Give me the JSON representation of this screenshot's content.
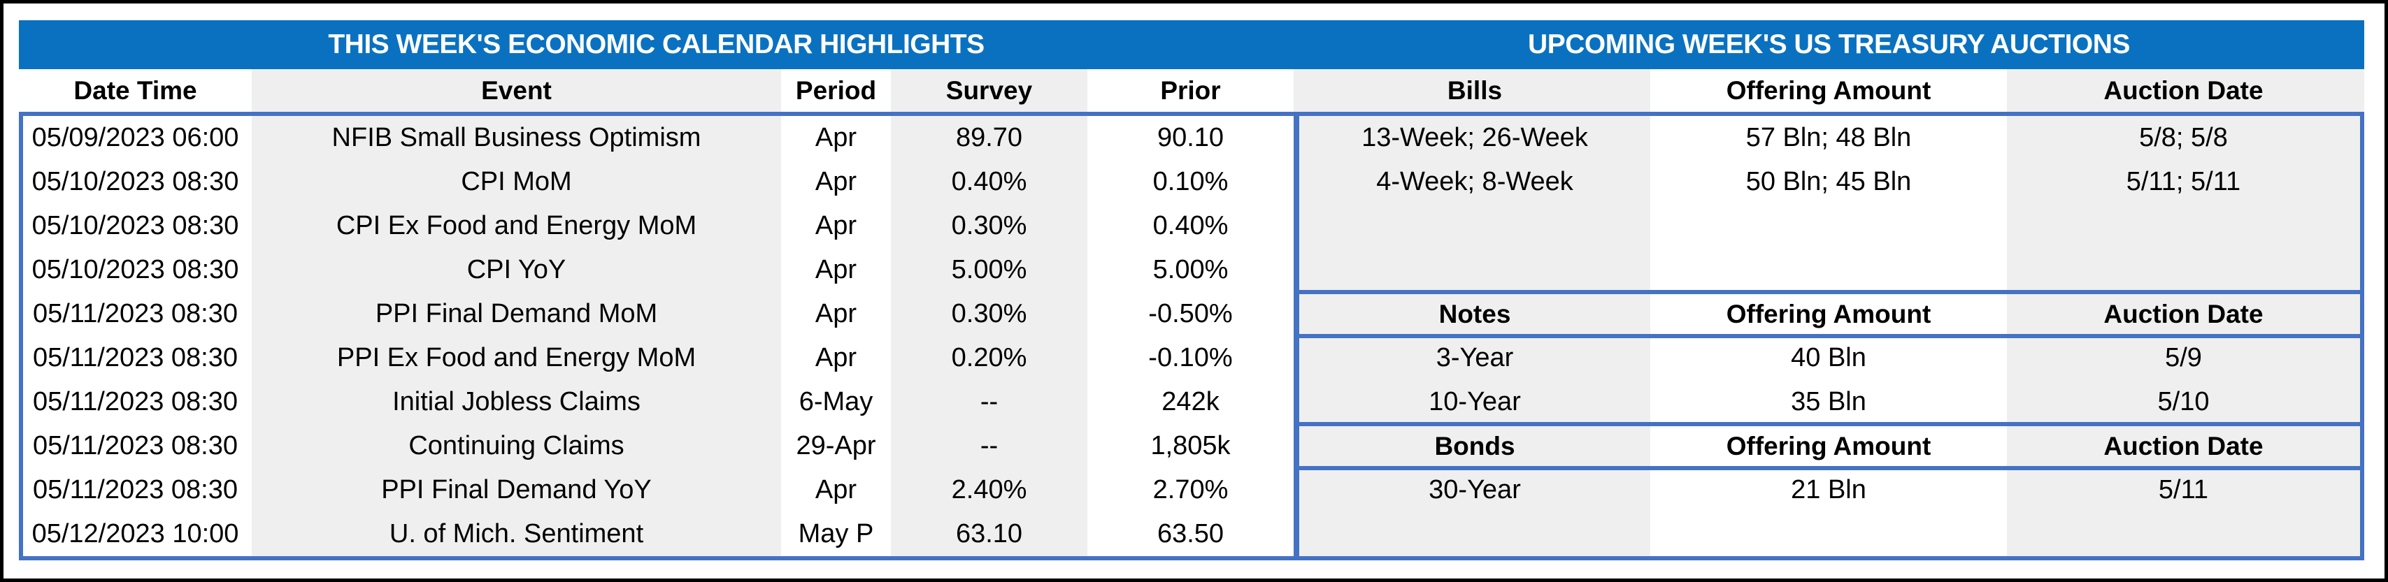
{
  "colors": {
    "title_bar_blue": "#0A71C0",
    "border_blue": "#4472C4",
    "column_shade_gray": "#EFEFEF",
    "outer_frame_black": "#000000",
    "title_text": "#FFFFFF",
    "body_text": "#000000"
  },
  "left_table": {
    "title": "THIS WEEK'S ECONOMIC CALENDAR HIGHLIGHTS",
    "columns": [
      "Date Time",
      "Event",
      "Period",
      "Survey",
      "Prior"
    ],
    "rows": [
      [
        "05/09/2023 06:00",
        "NFIB Small Business Optimism",
        "Apr",
        "89.70",
        "90.10"
      ],
      [
        "05/10/2023 08:30",
        "CPI MoM",
        "Apr",
        "0.40%",
        "0.10%"
      ],
      [
        "05/10/2023 08:30",
        "CPI Ex Food and Energy MoM",
        "Apr",
        "0.30%",
        "0.40%"
      ],
      [
        "05/10/2023 08:30",
        "CPI YoY",
        "Apr",
        "5.00%",
        "5.00%"
      ],
      [
        "05/11/2023 08:30",
        "PPI Final Demand MoM",
        "Apr",
        "0.30%",
        "-0.50%"
      ],
      [
        "05/11/2023 08:30",
        "PPI Ex Food and Energy MoM",
        "Apr",
        "0.20%",
        "-0.10%"
      ],
      [
        "05/11/2023 08:30",
        "Initial Jobless Claims",
        "6-May",
        "--",
        "242k"
      ],
      [
        "05/11/2023 08:30",
        "Continuing Claims",
        "29-Apr",
        "--",
        "1,805k"
      ],
      [
        "05/11/2023 08:30",
        "PPI Final Demand YoY",
        "Apr",
        "2.40%",
        "2.70%"
      ],
      [
        "05/12/2023 10:00",
        "U. of Mich. Sentiment",
        "May P",
        "63.10",
        "63.50"
      ]
    ]
  },
  "right_table": {
    "title": "UPCOMING WEEK'S US TREASURY AUCTIONS",
    "sections": [
      {
        "header": [
          "Bills",
          "Offering Amount",
          "Auction Date"
        ],
        "rows": [
          [
            "13-Week; 26-Week",
            "57 Bln; 48 Bln",
            "5/8; 5/8"
          ],
          [
            "4-Week; 8-Week",
            "50 Bln; 45 Bln",
            "5/11; 5/11"
          ]
        ]
      },
      {
        "header": [
          "Notes",
          "Offering Amount",
          "Auction Date"
        ],
        "rows": [
          [
            "3-Year",
            "40 Bln",
            "5/9"
          ],
          [
            "10-Year",
            "35 Bln",
            "5/10"
          ]
        ]
      },
      {
        "header": [
          "Bonds",
          "Offering Amount",
          "Auction Date"
        ],
        "rows": [
          [
            "30-Year",
            "21 Bln",
            "5/11"
          ]
        ]
      }
    ]
  }
}
